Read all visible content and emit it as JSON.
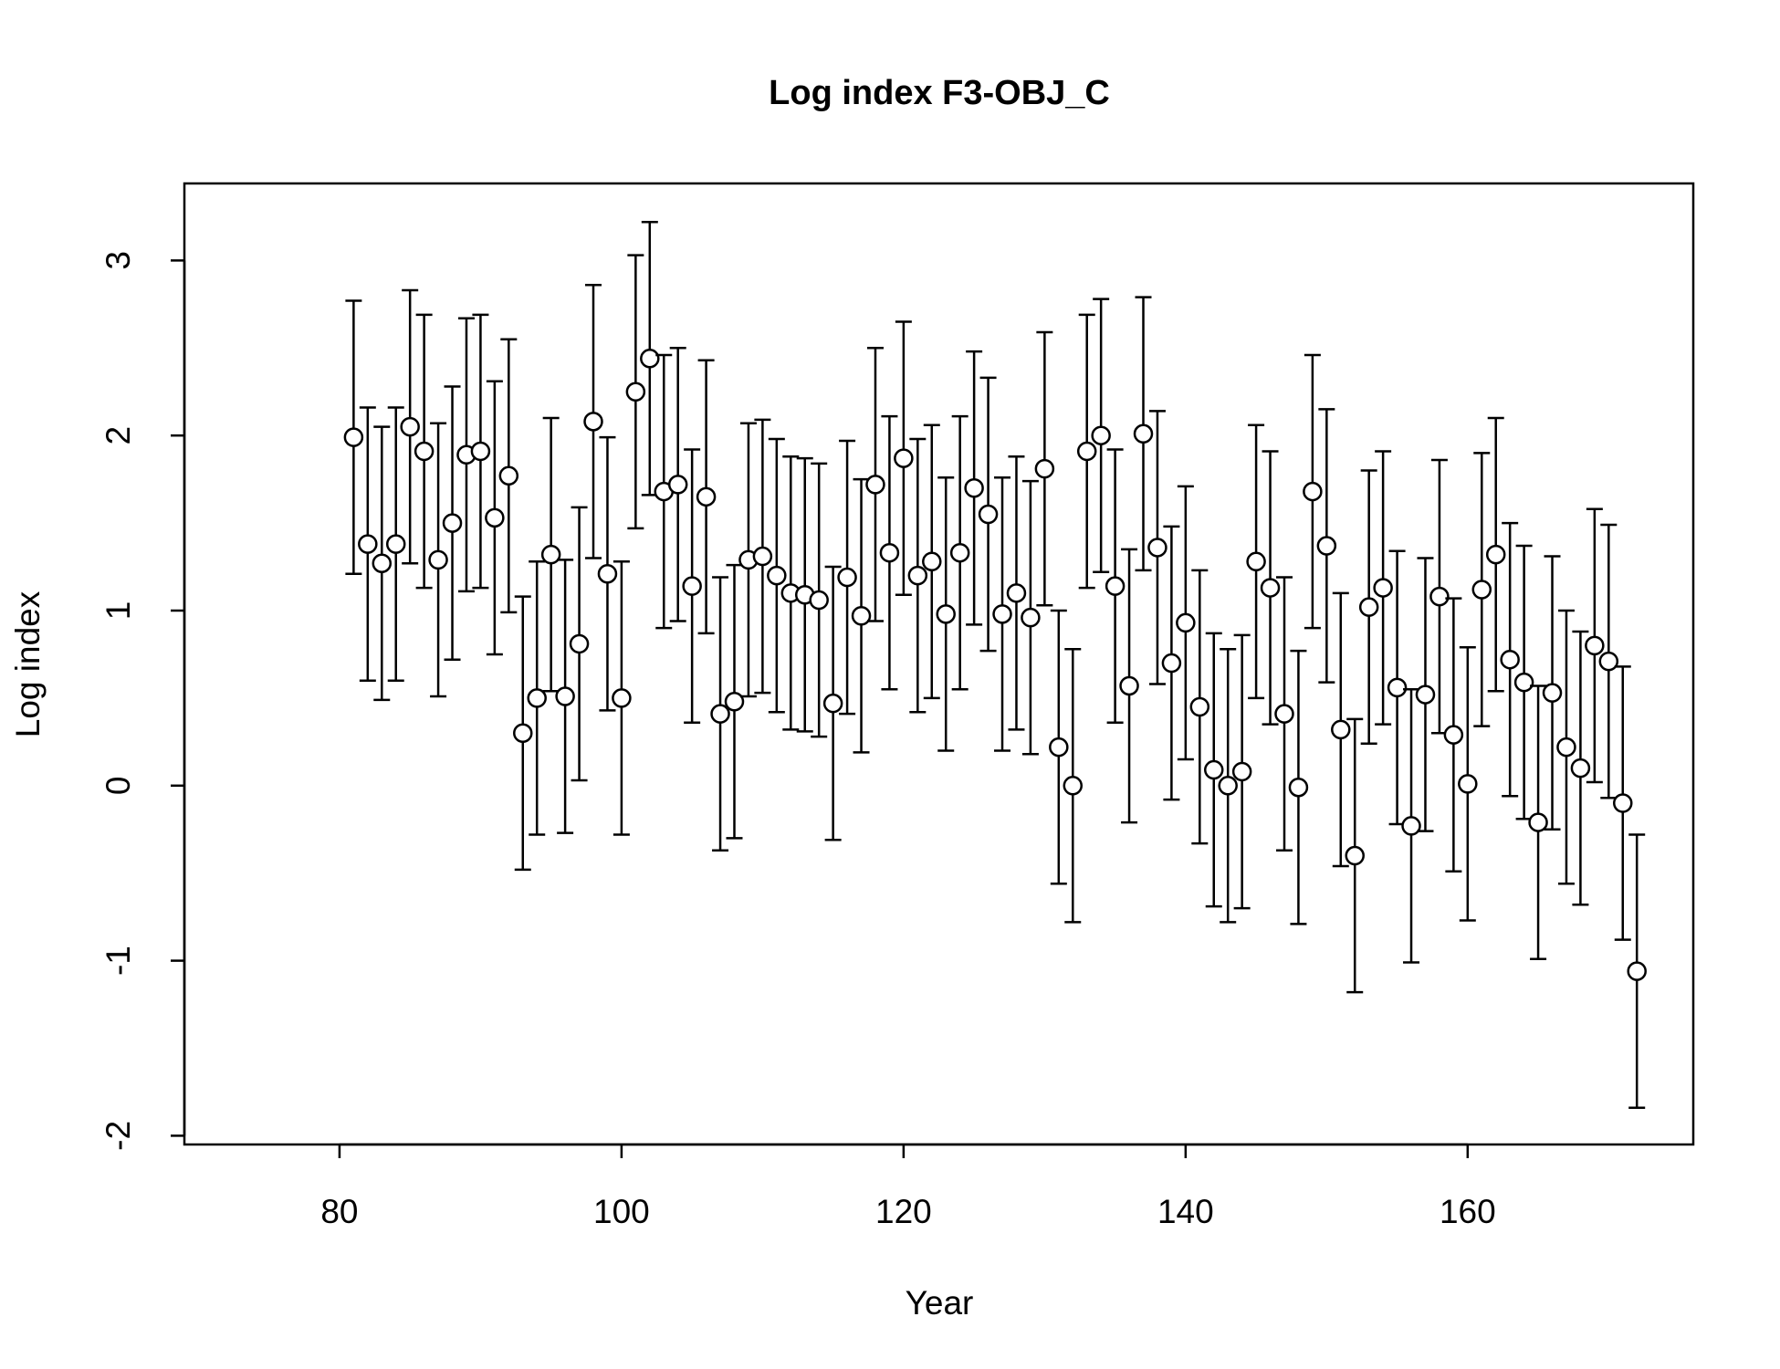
{
  "chart_data": {
    "type": "errorbar",
    "title": "Log index F3-OBJ_C",
    "xlabel": "Year",
    "ylabel": "Log index",
    "x": [
      81,
      82,
      83,
      84,
      85,
      86,
      87,
      88,
      89,
      90,
      91,
      92,
      93,
      94,
      95,
      96,
      97,
      98,
      99,
      100,
      101,
      102,
      103,
      104,
      105,
      106,
      107,
      108,
      109,
      110,
      111,
      112,
      113,
      114,
      115,
      116,
      117,
      118,
      119,
      120,
      121,
      122,
      123,
      124,
      125,
      126,
      127,
      128,
      129,
      130,
      131,
      132,
      133,
      134,
      135,
      136,
      137,
      138,
      139,
      140,
      141,
      142,
      143,
      144,
      145,
      146,
      147,
      148,
      149,
      150,
      151,
      152,
      153,
      154,
      155,
      156,
      157,
      158,
      159,
      160,
      161,
      162,
      163,
      164,
      165,
      166,
      167,
      168,
      169,
      170,
      171,
      172
    ],
    "series": [
      {
        "color": "#000000",
        "values": [
          1.99,
          1.38,
          1.27,
          1.38,
          2.05,
          1.91,
          1.29,
          1.5,
          1.89,
          1.91,
          1.53,
          1.77,
          0.3,
          0.5,
          1.32,
          0.51,
          0.81,
          2.08,
          1.21,
          0.5,
          2.25,
          2.44,
          1.68,
          1.72,
          1.14,
          1.65,
          0.41,
          0.48,
          1.29,
          1.31,
          1.2,
          1.1,
          1.09,
          1.06,
          0.47,
          1.19,
          0.97,
          1.72,
          1.33,
          1.87,
          1.2,
          1.28,
          0.98,
          1.33,
          1.7,
          1.55,
          0.98,
          1.1,
          0.96,
          1.81,
          0.22,
          0.0,
          1.91,
          2.0,
          1.14,
          0.57,
          2.01,
          1.36,
          0.7,
          0.93,
          0.45,
          0.09,
          0.0,
          0.08,
          1.28,
          1.13,
          0.41,
          -0.01,
          1.68,
          1.37,
          0.32,
          -0.4,
          1.02,
          1.13,
          0.56,
          -0.23,
          0.52,
          1.08,
          0.29,
          0.01,
          1.12,
          1.32,
          0.72,
          0.59,
          -0.21,
          0.53,
          0.22,
          0.1,
          0.8,
          0.71,
          -0.1,
          -1.06
        ]
      }
    ],
    "error": 0.78,
    "xlim": [
      69,
      176
    ],
    "ylim": [
      -2.05,
      3.44
    ],
    "xticks": [
      80,
      100,
      120,
      140,
      160
    ],
    "yticks": [
      -2,
      -1,
      0,
      1,
      2,
      3
    ],
    "grid": false
  }
}
